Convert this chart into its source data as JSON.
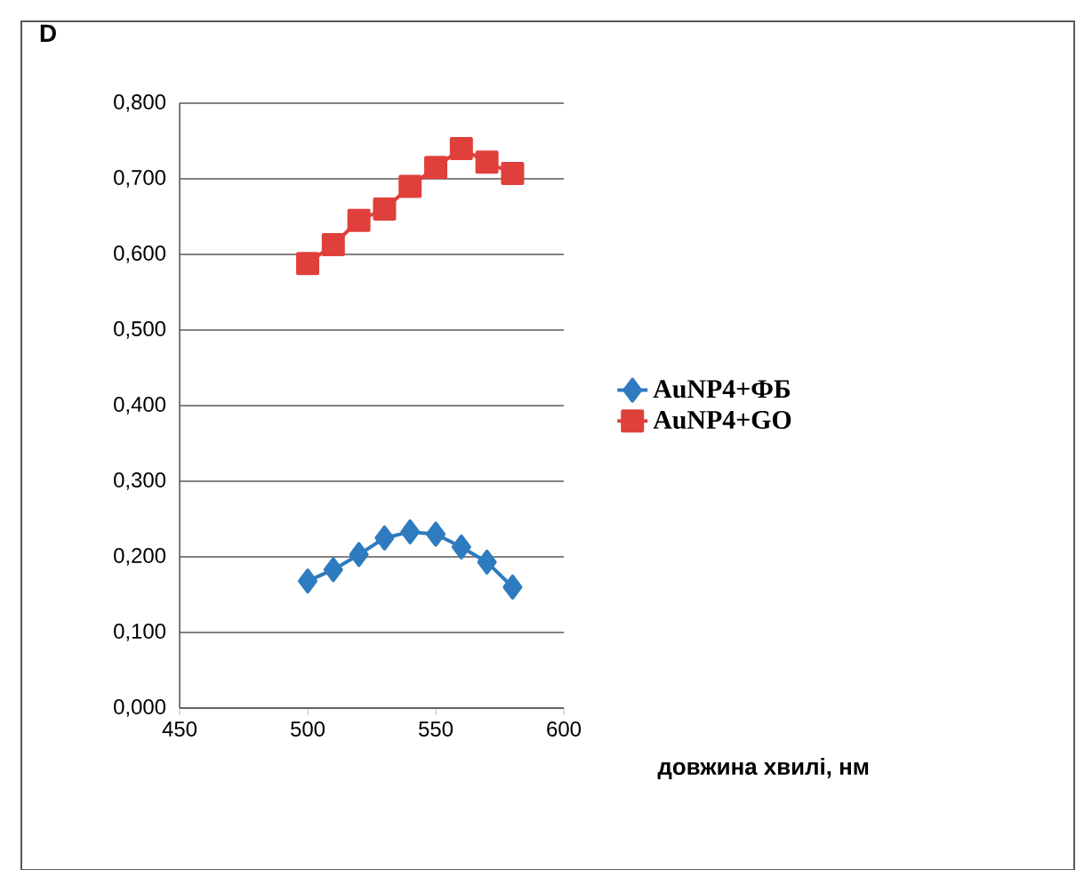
{
  "chart_data": {
    "type": "line",
    "xlabel": "довжина хвилі, нм",
    "ylabel": "D",
    "x": [
      500,
      510,
      520,
      530,
      540,
      550,
      560,
      570,
      580
    ],
    "series": [
      {
        "name": "AuNP4+ФБ",
        "color": "#2e7bbf",
        "marker": "diamond",
        "values": [
          0.168,
          0.183,
          0.203,
          0.225,
          0.233,
          0.23,
          0.213,
          0.193,
          0.16
        ]
      },
      {
        "name": "AuNP4+GO",
        "color": "#e0403c",
        "marker": "square",
        "values": [
          0.588,
          0.613,
          0.645,
          0.66,
          0.69,
          0.715,
          0.74,
          0.722,
          0.707
        ]
      }
    ],
    "xlim": [
      450,
      600
    ],
    "xticks": [
      450,
      500,
      550,
      600
    ],
    "ylim": [
      0,
      0.8
    ],
    "yticks": [
      {
        "value": 0,
        "label": "0,000"
      },
      {
        "value": 0.1,
        "label": "0,100"
      },
      {
        "value": 0.2,
        "label": "0,200"
      },
      {
        "value": 0.3,
        "label": "0,300"
      },
      {
        "value": 0.4,
        "label": "0,400"
      },
      {
        "value": 0.5,
        "label": "0,500"
      },
      {
        "value": 0.6,
        "label": "0,600"
      },
      {
        "value": 0.7,
        "label": "0,700"
      },
      {
        "value": 0.8,
        "label": "0,800"
      }
    ],
    "grid": "y",
    "legend": "right"
  }
}
